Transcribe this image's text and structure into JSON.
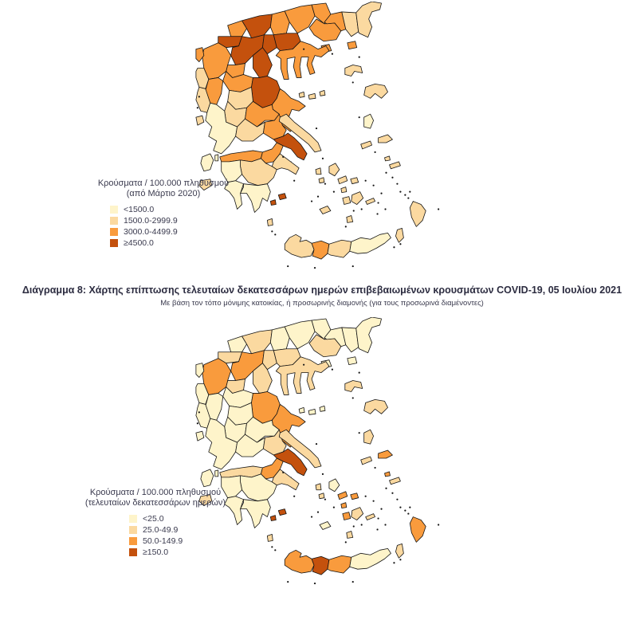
{
  "figure": {
    "title": "Διάγραμμα 8: Χάρτης επίπτωσης τελευταίων δεκατεσσάρων ημερών επιβεβαιωμένων κρουσμάτων COVID-19, 05 Ιουλίου 2021",
    "subtitle": "Με βάση τον τόπο μόνιμης κατοικίας, ή προσωρινής διαμονής (για τους προσωρινά διαμένοντες)"
  },
  "palette": {
    "c1": "#FEF4CA",
    "c2": "#FBD9A0",
    "c3": "#F99B3D",
    "c4": "#C4510D",
    "stroke": "#141414",
    "islet": "#141414"
  },
  "legend1": {
    "title_line1": "Κρούσματα / 100.000 πληθυσμού",
    "title_line2": "(από Μάρτιο 2020)",
    "items": [
      {
        "label": "<1500.0",
        "class": "c1"
      },
      {
        "label": "1500.0-2999.9",
        "class": "c2"
      },
      {
        "label": "3000.0-4499.9",
        "class": "c3"
      },
      {
        "label": "≥4500.0",
        "class": "c4"
      }
    ]
  },
  "legend2": {
    "title_line1": "Κρούσματα / 100.000 πληθυσμού",
    "title_line2": "(τελευταίων δεκατεσσάρων ημερών)",
    "items": [
      {
        "label": "<25.0",
        "class": "c1"
      },
      {
        "label": "25.0-49.9",
        "class": "c2"
      },
      {
        "label": "50.0-149.9",
        "class": "c3"
      },
      {
        "label": "≥150.0",
        "class": "c4"
      }
    ]
  },
  "map_regions": [
    {
      "id": "florina",
      "map1": "c3",
      "map2": "c1"
    },
    {
      "id": "pella",
      "map1": "c4",
      "map2": "c2"
    },
    {
      "id": "kilkis",
      "map1": "c3",
      "map2": "c1"
    },
    {
      "id": "serres",
      "map1": "c3",
      "map2": "c1"
    },
    {
      "id": "drama",
      "map1": "c3",
      "map2": "c1"
    },
    {
      "id": "kavala",
      "map1": "c3",
      "map2": "c2"
    },
    {
      "id": "xanthi",
      "map1": "c3",
      "map2": "c1"
    },
    {
      "id": "rhodope",
      "map1": "c2",
      "map2": "c1"
    },
    {
      "id": "evros",
      "map1": "c2",
      "map2": "c1"
    },
    {
      "id": "thasos",
      "map1": "c3",
      "map2": "c1"
    },
    {
      "id": "samothrace",
      "map1": "c3",
      "map2": "c1"
    },
    {
      "id": "kastoria",
      "map1": "c4",
      "map2": "c2"
    },
    {
      "id": "kozani",
      "map1": "c4",
      "map2": "c3"
    },
    {
      "id": "imathia",
      "map1": "c4",
      "map2": "c2"
    },
    {
      "id": "thessaloniki",
      "map1": "c4",
      "map2": "c2"
    },
    {
      "id": "chalkidiki",
      "map1": "c3",
      "map2": "c2"
    },
    {
      "id": "pieria",
      "map1": "c4",
      "map2": "c2"
    },
    {
      "id": "grevena",
      "map1": "c3",
      "map2": "c2"
    },
    {
      "id": "ioannina",
      "map1": "c3",
      "map2": "c3"
    },
    {
      "id": "thesprotia",
      "map1": "c2",
      "map2": "c1"
    },
    {
      "id": "corfu",
      "map1": "c3",
      "map2": "c1"
    },
    {
      "id": "trikala",
      "map1": "c3",
      "map2": "c1"
    },
    {
      "id": "larissa",
      "map1": "c4",
      "map2": "c3"
    },
    {
      "id": "magnesia",
      "map1": "c3",
      "map2": "c3"
    },
    {
      "id": "sporades",
      "map1": "c2",
      "map2": "c1"
    },
    {
      "id": "karditsa",
      "map1": "c2",
      "map2": "c1"
    },
    {
      "id": "arta",
      "map1": "c3",
      "map2": "c1"
    },
    {
      "id": "preveza",
      "map1": "c2",
      "map2": "c1"
    },
    {
      "id": "lefkada",
      "map1": "c2",
      "map2": "c1"
    },
    {
      "id": "evrytania",
      "map1": "c2",
      "map2": "c1"
    },
    {
      "id": "phthiotis",
      "map1": "c3",
      "map2": "c1"
    },
    {
      "id": "aetolia",
      "map1": "c1",
      "map2": "c1"
    },
    {
      "id": "phocis",
      "map1": "c2",
      "map2": "c1"
    },
    {
      "id": "boeotia",
      "map1": "c3",
      "map2": "c2"
    },
    {
      "id": "attica",
      "map1": "c4",
      "map2": "c4"
    },
    {
      "id": "attica_islands",
      "map1": "c4",
      "map2": "c4"
    },
    {
      "id": "evia",
      "map1": "c2",
      "map2": "c2"
    },
    {
      "id": "achaea",
      "map1": "c3",
      "map2": "c2"
    },
    {
      "id": "corinthia",
      "map1": "c3",
      "map2": "c3"
    },
    {
      "id": "argolis",
      "map1": "c2",
      "map2": "c2"
    },
    {
      "id": "arcadia",
      "map1": "c2",
      "map2": "c1"
    },
    {
      "id": "elis",
      "map1": "c1",
      "map2": "c1"
    },
    {
      "id": "messenia",
      "map1": "c1",
      "map2": "c1"
    },
    {
      "id": "laconia",
      "map1": "c1",
      "map2": "c1"
    },
    {
      "id": "kythira",
      "map1": "c2",
      "map2": "c2"
    },
    {
      "id": "kefalonia",
      "map1": "c1",
      "map2": "c1"
    },
    {
      "id": "zakynthos",
      "map1": "c2",
      "map2": "c2"
    },
    {
      "id": "chania",
      "map1": "c2",
      "map2": "c3"
    },
    {
      "id": "rethymno",
      "map1": "c3",
      "map2": "c4"
    },
    {
      "id": "heraklion",
      "map1": "c2",
      "map2": "c3"
    },
    {
      "id": "lasithi",
      "map1": "c1",
      "map2": "c1"
    },
    {
      "id": "lemnos",
      "map1": "c2",
      "map2": "c2"
    },
    {
      "id": "lesvos",
      "map1": "c2",
      "map2": "c2"
    },
    {
      "id": "chios",
      "map1": "c1",
      "map2": "c2"
    },
    {
      "id": "samos",
      "map1": "c2",
      "map2": "c3"
    },
    {
      "id": "ikaria",
      "map1": "c2",
      "map2": "c2"
    },
    {
      "id": "andros",
      "map1": "c2",
      "map2": "c1"
    },
    {
      "id": "tinos",
      "map1": "c2",
      "map2": "c3"
    },
    {
      "id": "mykonos",
      "map1": "c2",
      "map2": "c3"
    },
    {
      "id": "syros",
      "map1": "c2",
      "map2": "c3"
    },
    {
      "id": "kea",
      "map1": "c2",
      "map2": "c2"
    },
    {
      "id": "paros",
      "map1": "c2",
      "map2": "c3"
    },
    {
      "id": "naxos",
      "map1": "c2",
      "map2": "c2"
    },
    {
      "id": "milos",
      "map1": "c2",
      "map2": "c1"
    },
    {
      "id": "santorini",
      "map1": "c2",
      "map2": "c2"
    },
    {
      "id": "amorgos",
      "map1": "c2",
      "map2": "c2"
    },
    {
      "id": "kos",
      "map1": "c2",
      "map2": "c2"
    },
    {
      "id": "kalymnos",
      "map1": "c2",
      "map2": "c3"
    },
    {
      "id": "rhodes",
      "map1": "c2",
      "map2": "c3"
    },
    {
      "id": "karpathos",
      "map1": "c2",
      "map2": "c2"
    }
  ]
}
